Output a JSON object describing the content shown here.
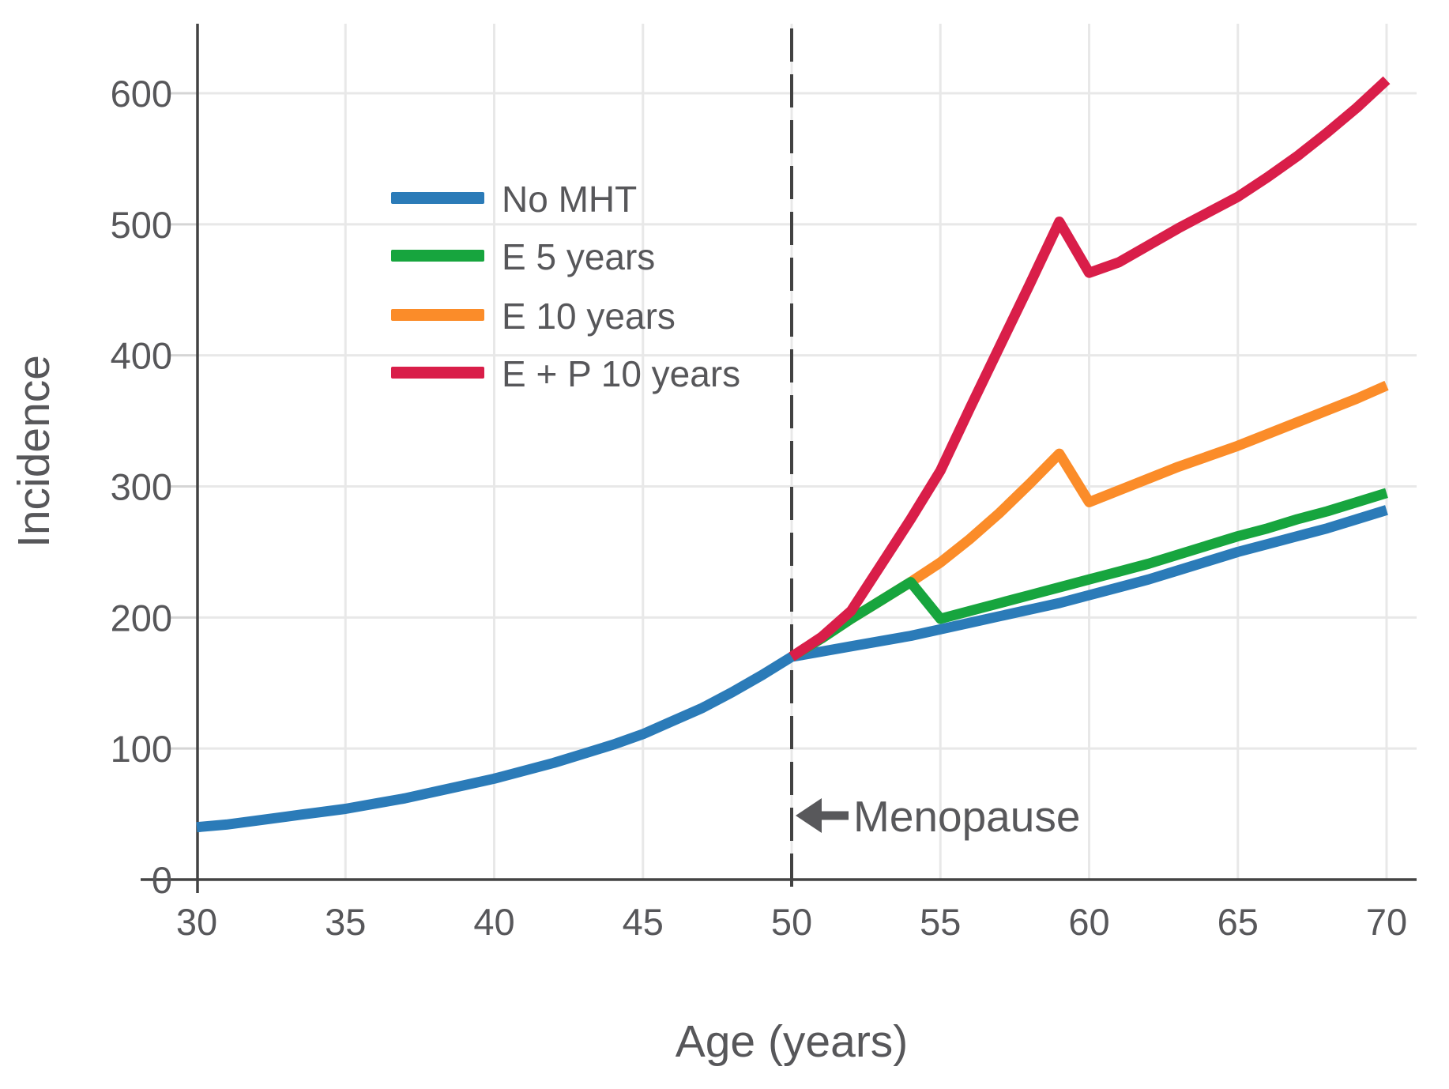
{
  "chart_data": {
    "type": "line",
    "title": "",
    "xlabel": "Age (years)",
    "ylabel": "Incidence",
    "xlim": [
      30,
      70
    ],
    "ylim": [
      0,
      655
    ],
    "xticks": [
      30,
      35,
      40,
      45,
      50,
      55,
      60,
      65,
      70
    ],
    "yticks": [
      0,
      100,
      200,
      300,
      400,
      500,
      600
    ],
    "grid": true,
    "legend_position": "upper-left-inside",
    "annotation": {
      "label": "Menopause",
      "x": 50,
      "arrow": "left",
      "line_style": "dashed"
    },
    "series": [
      {
        "name": "No MHT",
        "color": "#2b7bb8",
        "points": [
          [
            30,
            40
          ],
          [
            31,
            42
          ],
          [
            32,
            45
          ],
          [
            33,
            48
          ],
          [
            34,
            51
          ],
          [
            35,
            54
          ],
          [
            36,
            58
          ],
          [
            37,
            62
          ],
          [
            38,
            67
          ],
          [
            39,
            72
          ],
          [
            40,
            77
          ],
          [
            41,
            83
          ],
          [
            42,
            89
          ],
          [
            43,
            96
          ],
          [
            44,
            103
          ],
          [
            45,
            111
          ],
          [
            46,
            121
          ],
          [
            47,
            131
          ],
          [
            48,
            143
          ],
          [
            49,
            156
          ],
          [
            50,
            170
          ],
          [
            51,
            174
          ],
          [
            52,
            178
          ],
          [
            53,
            182
          ],
          [
            54,
            186
          ],
          [
            55,
            191
          ],
          [
            56,
            196
          ],
          [
            57,
            201
          ],
          [
            58,
            206
          ],
          [
            59,
            211
          ],
          [
            60,
            217
          ],
          [
            61,
            223
          ],
          [
            62,
            229
          ],
          [
            63,
            236
          ],
          [
            64,
            243
          ],
          [
            65,
            250
          ],
          [
            66,
            256
          ],
          [
            67,
            262
          ],
          [
            68,
            268
          ],
          [
            69,
            275
          ],
          [
            70,
            282
          ]
        ]
      },
      {
        "name": "E 5 years",
        "color": "#17a53e",
        "points": [
          [
            50,
            170
          ],
          [
            51,
            184
          ],
          [
            52,
            199
          ],
          [
            53,
            213
          ],
          [
            54,
            227
          ],
          [
            55,
            199
          ],
          [
            56,
            205
          ],
          [
            57,
            211
          ],
          [
            58,
            217
          ],
          [
            59,
            223
          ],
          [
            60,
            229
          ],
          [
            61,
            235
          ],
          [
            62,
            241
          ],
          [
            63,
            248
          ],
          [
            64,
            255
          ],
          [
            65,
            262
          ],
          [
            66,
            268
          ],
          [
            67,
            275
          ],
          [
            68,
            281
          ],
          [
            69,
            288
          ],
          [
            70,
            295
          ]
        ]
      },
      {
        "name": "E 10 years",
        "color": "#fb8c29",
        "points": [
          [
            50,
            170
          ],
          [
            51,
            184
          ],
          [
            52,
            199
          ],
          [
            53,
            213
          ],
          [
            54,
            227
          ],
          [
            55,
            242
          ],
          [
            56,
            260
          ],
          [
            57,
            280
          ],
          [
            58,
            302
          ],
          [
            59,
            325
          ],
          [
            60,
            288
          ],
          [
            61,
            297
          ],
          [
            62,
            306
          ],
          [
            63,
            315
          ],
          [
            64,
            323
          ],
          [
            65,
            331
          ],
          [
            66,
            340
          ],
          [
            67,
            349
          ],
          [
            68,
            358
          ],
          [
            69,
            367
          ],
          [
            70,
            377
          ]
        ]
      },
      {
        "name": "E + P 10 years",
        "color": "#d91e49",
        "points": [
          [
            50,
            170
          ],
          [
            51,
            185
          ],
          [
            52,
            205
          ],
          [
            53,
            240
          ],
          [
            54,
            275
          ],
          [
            55,
            312
          ],
          [
            56,
            360
          ],
          [
            57,
            407
          ],
          [
            58,
            454
          ],
          [
            59,
            502
          ],
          [
            60,
            463
          ],
          [
            61,
            471
          ],
          [
            62,
            484
          ],
          [
            63,
            497
          ],
          [
            64,
            509
          ],
          [
            65,
            521
          ],
          [
            66,
            536
          ],
          [
            67,
            552
          ],
          [
            68,
            570
          ],
          [
            69,
            589
          ],
          [
            70,
            610
          ]
        ]
      }
    ],
    "colors": {
      "text": "#57575a",
      "spine": "#434343",
      "gridline": "#e8e8e8",
      "tick_stub": "#d5d5d5",
      "dashed_line": "#424242",
      "annotation": "#58585b",
      "background": "#ffffff"
    }
  }
}
